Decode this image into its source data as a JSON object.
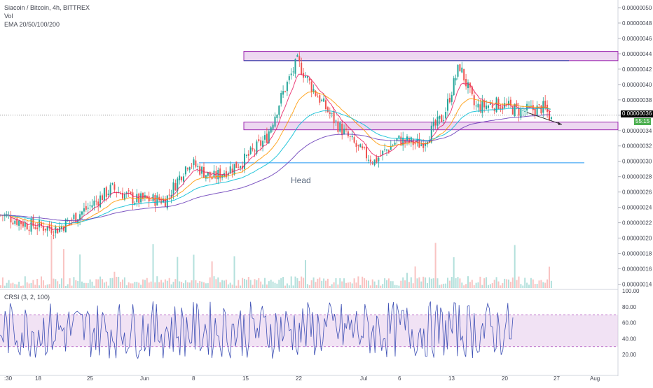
{
  "header": {
    "symbol_line": "Siacoin / Bitcoin, 4h, BITTREX",
    "vol_label": "Vol",
    "ema_label": "EMA 20/50/100/200"
  },
  "crsi": {
    "label": "CRSI (3, 2, 100)",
    "ticks": [
      "100.00",
      "80.00",
      "60.00",
      "40.00",
      "20.00"
    ],
    "tick_values": [
      100,
      80,
      60,
      40,
      20
    ],
    "band": [
      30,
      70
    ],
    "value_range": [
      0,
      100
    ]
  },
  "price_scale": {
    "ticks": [
      "0.00000050",
      "0.00000048",
      "0.00000046",
      "0.00000044",
      "0.00000042",
      "0.00000040",
      "0.00000038",
      "0.00000036",
      "0.00000034",
      "0.00000032",
      "0.00000030",
      "0.00000028",
      "0.00000026",
      "0.00000024",
      "0.00000022",
      "0.00000020",
      "0.00000018",
      "0.00000016",
      "0.00000014"
    ],
    "current_price_label": "0.00000036",
    "countdown_label": "55:15"
  },
  "time_axis": {
    "labels": [
      ":30",
      "18",
      "25",
      "Jun",
      "8",
      "15",
      "22",
      "Jul",
      "6",
      "13",
      "20",
      "27",
      "Aug"
    ]
  },
  "annotations": {
    "head_label": "Head"
  },
  "colors": {
    "up": "#26a69a",
    "down": "#ef5350",
    "ema20": "#e91e63",
    "ema50": "#ff9800",
    "ema100": "#00bcd4",
    "ema200": "#673ab7",
    "zone_fill": "#e1bee7",
    "zone_border": "#9c27b0",
    "hline": "#2196f3",
    "crsi_line": "#3f51b5",
    "current_price_bg": "#000000",
    "countdown_bg": "#4caf50"
  },
  "chart_data": {
    "type": "candlestick",
    "title": "Siacoin / Bitcoin, 4h, BITTREX",
    "ylim": [
      1.35e-07,
      5.1e-07
    ],
    "zones": [
      {
        "from": 4.31e-07,
        "to": 4.43e-07
      },
      {
        "from": 3.41e-07,
        "to": 3.51e-07
      }
    ],
    "horizontal_levels": [
      4.31e-07,
      2.98e-07
    ],
    "current_price": 3.6e-07,
    "price_path": [
      {
        "x": "May 11",
        "y": 2.3e-07
      },
      {
        "x": "May 14",
        "y": 2.18e-07
      },
      {
        "x": "May 18",
        "y": 2.12e-07
      },
      {
        "x": "May 22",
        "y": 2.4e-07
      },
      {
        "x": "May 25",
        "y": 2.65e-07
      },
      {
        "x": "May 28",
        "y": 2.5e-07
      },
      {
        "x": "Jun 1",
        "y": 2.5e-07
      },
      {
        "x": "Jun 4",
        "y": 3e-07
      },
      {
        "x": "Jun 7",
        "y": 2.78e-07
      },
      {
        "x": "Jun 11",
        "y": 3e-07
      },
      {
        "x": "Jun 14",
        "y": 3.3e-07
      },
      {
        "x": "Jun 16",
        "y": 3.85e-07
      },
      {
        "x": "Jun 18",
        "y": 4.3e-07
      },
      {
        "x": "Jun 20",
        "y": 3.95e-07
      },
      {
        "x": "Jun 23",
        "y": 3.5e-07
      },
      {
        "x": "Jun 26",
        "y": 3.15e-07
      },
      {
        "x": "Jun 28",
        "y": 3e-07
      },
      {
        "x": "Jul 1",
        "y": 3.28e-07
      },
      {
        "x": "Jul 4",
        "y": 3.22e-07
      },
      {
        "x": "Jul 7",
        "y": 3.6e-07
      },
      {
        "x": "Jul 9",
        "y": 4.25e-07
      },
      {
        "x": "Jul 11",
        "y": 3.7e-07
      },
      {
        "x": "Jul 14",
        "y": 3.75e-07
      },
      {
        "x": "Jul 17",
        "y": 3.65e-07
      },
      {
        "x": "Jul 20",
        "y": 3.7e-07
      },
      {
        "x": "Jul 21",
        "y": 3.52e-07
      }
    ]
  }
}
